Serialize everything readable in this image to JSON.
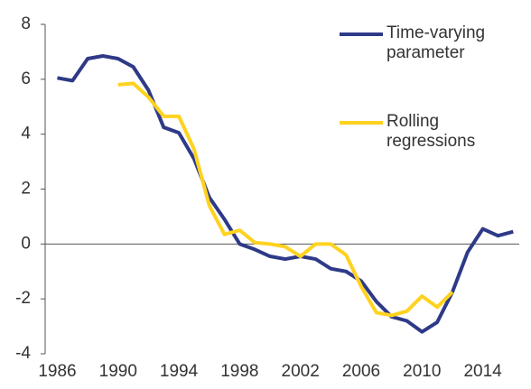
{
  "chart_data": {
    "type": "line",
    "x": [
      1986,
      1987,
      1988,
      1989,
      1990,
      1991,
      1992,
      1993,
      1994,
      1995,
      1996,
      1997,
      1998,
      1999,
      2000,
      2001,
      2002,
      2003,
      2004,
      2005,
      2006,
      2007,
      2008,
      2009,
      2010,
      2011,
      2012,
      2013,
      2014,
      2015,
      2016
    ],
    "series": [
      {
        "name": "Time-varying parameter",
        "color": "#2e3a87",
        "values": [
          6.05,
          5.95,
          6.75,
          6.85,
          6.75,
          6.45,
          5.6,
          4.25,
          4.05,
          3.1,
          1.7,
          0.9,
          0.0,
          -0.2,
          -0.45,
          -0.55,
          -0.45,
          -0.55,
          -0.9,
          -1.0,
          -1.35,
          -2.1,
          -2.65,
          -2.8,
          -3.2,
          -2.85,
          -1.75,
          -0.3,
          0.55,
          0.3,
          0.45
        ]
      },
      {
        "name": "Rolling regressions",
        "color": "#ffd21f",
        "values": [
          null,
          null,
          null,
          null,
          5.8,
          5.85,
          5.35,
          4.65,
          4.65,
          3.45,
          1.4,
          0.35,
          0.5,
          0.05,
          0.0,
          -0.1,
          -0.45,
          0.0,
          0.0,
          -0.4,
          -1.55,
          -2.5,
          -2.6,
          -2.45,
          -1.9,
          -2.3,
          -1.75,
          null,
          null,
          null,
          null
        ]
      }
    ],
    "xlim": [
      1985.2,
      2016.4
    ],
    "xticks": [
      1986,
      1990,
      1994,
      1998,
      2002,
      2006,
      2010,
      2014
    ],
    "ylim": [
      -4,
      8
    ],
    "yticks": [
      -4,
      -2,
      0,
      2,
      4,
      6,
      8
    ],
    "grid": false
  }
}
